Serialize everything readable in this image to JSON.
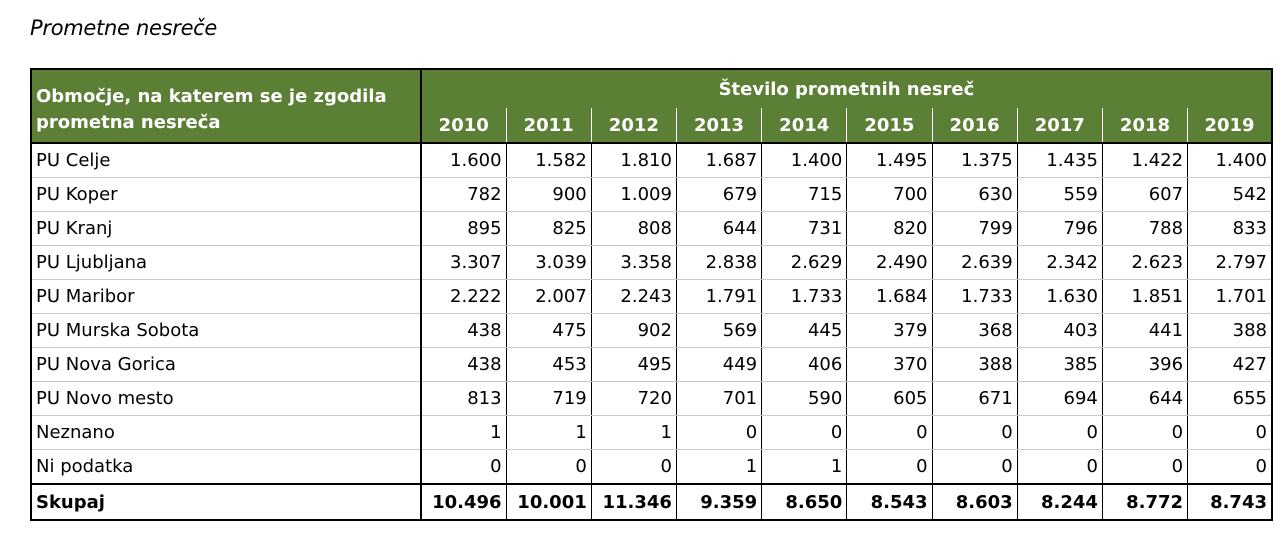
{
  "caption": "Prometne nesreče",
  "table": {
    "area_header": "Območje, na katerem se je zgodila prometna nesreča",
    "group_header": "Število prometnih nesreč",
    "years": [
      "2010",
      "2011",
      "2012",
      "2013",
      "2014",
      "2015",
      "2016",
      "2017",
      "2018",
      "2019"
    ],
    "rows": [
      {
        "name": "PU Celje",
        "values": [
          "1.600",
          "1.582",
          "1.810",
          "1.687",
          "1.400",
          "1.495",
          "1.375",
          "1.435",
          "1.422",
          "1.400"
        ]
      },
      {
        "name": "PU Koper",
        "values": [
          "782",
          "900",
          "1.009",
          "679",
          "715",
          "700",
          "630",
          "559",
          "607",
          "542"
        ]
      },
      {
        "name": "PU Kranj",
        "values": [
          "895",
          "825",
          "808",
          "644",
          "731",
          "820",
          "799",
          "796",
          "788",
          "833"
        ]
      },
      {
        "name": "PU Ljubljana",
        "values": [
          "3.307",
          "3.039",
          "3.358",
          "2.838",
          "2.629",
          "2.490",
          "2.639",
          "2.342",
          "2.623",
          "2.797"
        ]
      },
      {
        "name": "PU Maribor",
        "values": [
          "2.222",
          "2.007",
          "2.243",
          "1.791",
          "1.733",
          "1.684",
          "1.733",
          "1.630",
          "1.851",
          "1.701"
        ]
      },
      {
        "name": "PU Murska Sobota",
        "values": [
          "438",
          "475",
          "902",
          "569",
          "445",
          "379",
          "368",
          "403",
          "441",
          "388"
        ]
      },
      {
        "name": "PU Nova Gorica",
        "values": [
          "438",
          "453",
          "495",
          "449",
          "406",
          "370",
          "388",
          "385",
          "396",
          "427"
        ]
      },
      {
        "name": "PU Novo mesto",
        "values": [
          "813",
          "719",
          "720",
          "701",
          "590",
          "605",
          "671",
          "694",
          "644",
          "655"
        ]
      },
      {
        "name": "Neznano",
        "values": [
          "1",
          "1",
          "1",
          "0",
          "0",
          "0",
          "0",
          "0",
          "0",
          "0"
        ]
      },
      {
        "name": "Ni podatka",
        "values": [
          "0",
          "0",
          "0",
          "1",
          "1",
          "0",
          "0",
          "0",
          "0",
          "0"
        ]
      }
    ],
    "total": {
      "name": "Skupaj",
      "values": [
        "10.496",
        "10.001",
        "11.346",
        "9.359",
        "8.650",
        "8.543",
        "8.603",
        "8.244",
        "8.772",
        "8.743"
      ]
    }
  }
}
